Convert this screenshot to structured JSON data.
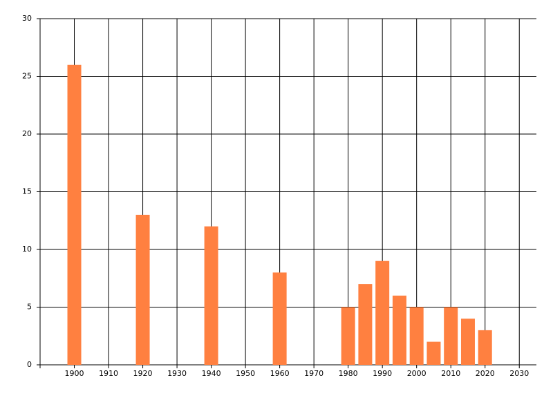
{
  "chart_data": {
    "type": "bar",
    "x": [
      1900,
      1920,
      1940,
      1960,
      1980,
      1985,
      1990,
      1995,
      2000,
      2005,
      2010,
      2015,
      2020
    ],
    "values": [
      26,
      13,
      12,
      8,
      5,
      7,
      9,
      6,
      5,
      2,
      5,
      4,
      3
    ],
    "color": "#ff8040",
    "xlim": [
      1890,
      2035
    ],
    "xticks": [
      1900,
      1910,
      1920,
      1930,
      1940,
      1950,
      1960,
      1970,
      1980,
      1990,
      2000,
      2010,
      2020,
      2030
    ],
    "ylim": [
      0,
      30
    ],
    "yticks": [
      0,
      5,
      10,
      15,
      20,
      25,
      30
    ],
    "grid": true
  }
}
